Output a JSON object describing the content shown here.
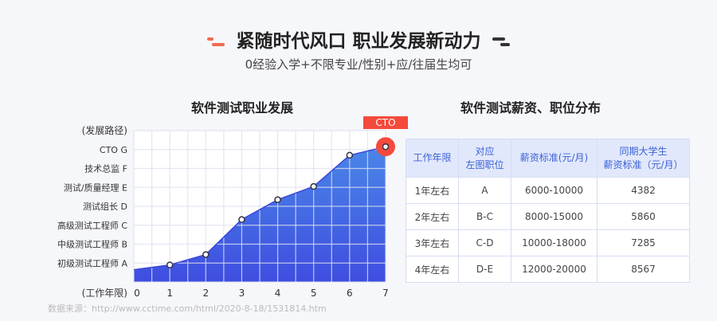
{
  "header": {
    "title": "紧随时代风口 职业发展新动力",
    "subtitle": "0经验入学+不限专业/性别+应/往届生均可"
  },
  "chart_data": {
    "type": "area",
    "title": "软件测试职业发展",
    "ylabel": "(发展路径)",
    "xlabel": "(工作年限)",
    "x": [
      0,
      1,
      2,
      3,
      4,
      5,
      6,
      7
    ],
    "values": [
      0.65,
      0.9,
      1.45,
      3.3,
      4.35,
      5.05,
      6.7,
      7.15
    ],
    "xlim": [
      0,
      7
    ],
    "ylim": [
      0,
      8
    ],
    "y_ticks": [
      {
        "v": 1,
        "label": "初级测试工程师  A"
      },
      {
        "v": 2,
        "label": "中级测试工程师  B"
      },
      {
        "v": 3,
        "label": "高级测试工程师  C"
      },
      {
        "v": 4,
        "label": "测试组长  D"
      },
      {
        "v": 5,
        "label": "测试/质量经理  E"
      },
      {
        "v": 6,
        "label": "技术总监  F"
      },
      {
        "v": 7,
        "label": "CTO  G"
      }
    ],
    "annotation": "CTO",
    "grid": true,
    "colors": {
      "fill_top": "#4a86e8",
      "fill_bottom": "#3f4de0",
      "line": "#3a45d6",
      "marker": "#f44a3c"
    }
  },
  "table": {
    "title": "软件测试薪资、职位分布",
    "headers": [
      "工作年限",
      "对应\n左图职位",
      "薪资标准(元/月)",
      "同期大学生\n薪资标准（元/月）"
    ],
    "rows": [
      [
        "1年左右",
        "A",
        "6000-10000",
        "4382"
      ],
      [
        "2年左右",
        "B-C",
        "8000-15000",
        "5860"
      ],
      [
        "3年左右",
        "C-D",
        "10000-18000",
        "7285"
      ],
      [
        "4年左右",
        "D-E",
        "12000-20000",
        "8567"
      ]
    ]
  },
  "source": "数据来源：http://www.cctime.com/html/2020-8-18/1531814.htm"
}
